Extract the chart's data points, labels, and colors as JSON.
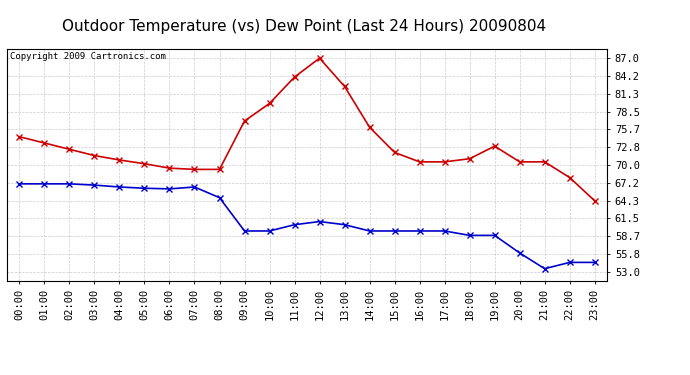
{
  "title": "Outdoor Temperature (vs) Dew Point (Last 24 Hours) 20090804",
  "copyright": "Copyright 2009 Cartronics.com",
  "x_labels": [
    "00:00",
    "01:00",
    "02:00",
    "03:00",
    "04:00",
    "05:00",
    "06:00",
    "07:00",
    "08:00",
    "09:00",
    "10:00",
    "11:00",
    "12:00",
    "13:00",
    "14:00",
    "15:00",
    "16:00",
    "17:00",
    "18:00",
    "19:00",
    "20:00",
    "21:00",
    "22:00",
    "23:00"
  ],
  "temp_values": [
    74.5,
    73.5,
    72.5,
    71.5,
    70.8,
    70.2,
    69.5,
    69.3,
    69.3,
    77.0,
    79.8,
    84.0,
    87.0,
    82.5,
    76.0,
    72.0,
    70.5,
    70.5,
    71.0,
    73.0,
    70.5,
    70.5,
    68.0,
    64.3
  ],
  "dew_values": [
    67.0,
    67.0,
    67.0,
    66.8,
    66.5,
    66.3,
    66.2,
    66.5,
    64.8,
    59.5,
    59.5,
    60.5,
    61.0,
    60.5,
    59.5,
    59.5,
    59.5,
    59.5,
    58.8,
    58.8,
    56.0,
    53.5,
    54.5,
    54.5
  ],
  "temp_color": "#cc0000",
  "dew_color": "#0000cc",
  "bg_color": "#ffffff",
  "grid_color": "#cccccc",
  "y_ticks": [
    53.0,
    55.8,
    58.7,
    61.5,
    64.3,
    67.2,
    70.0,
    72.8,
    75.7,
    78.5,
    81.3,
    84.2,
    87.0
  ],
  "y_min": 51.5,
  "y_max": 88.5,
  "title_fontsize": 11,
  "copyright_fontsize": 6.5,
  "tick_fontsize": 7.5,
  "marker": "x",
  "linewidth": 1.2,
  "markersize": 4,
  "markeredgewidth": 1.0
}
